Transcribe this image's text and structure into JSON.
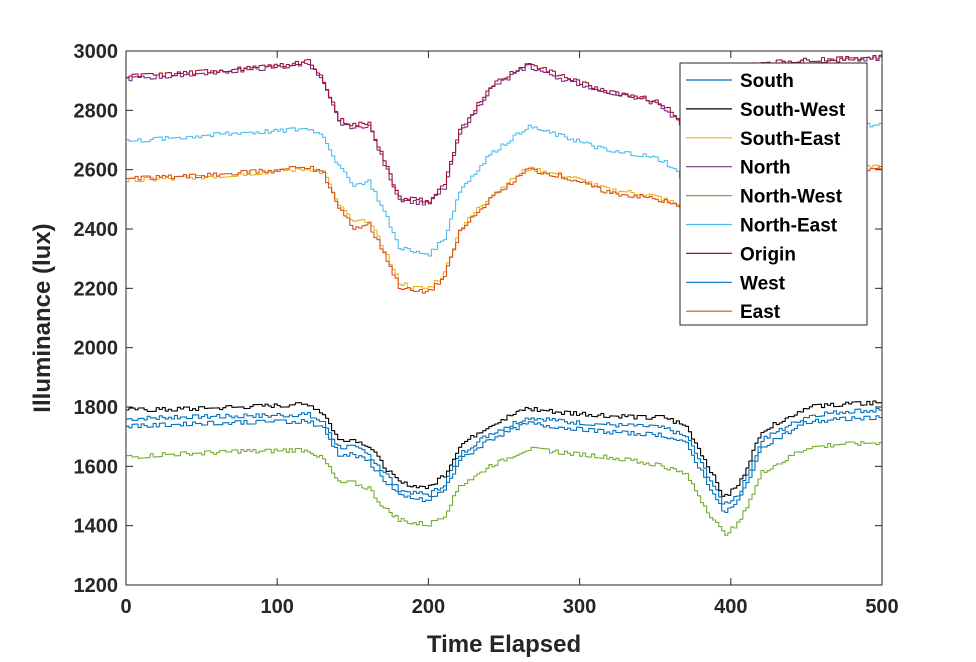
{
  "chart_data": {
    "type": "line",
    "title": "",
    "xlabel": "Time Elapsed",
    "ylabel": "Illuminance (lux)",
    "xlim": [
      0,
      500
    ],
    "ylim": [
      1200,
      3000
    ],
    "xticks": [
      0,
      100,
      200,
      300,
      400,
      500
    ],
    "yticks": [
      1200,
      1400,
      1600,
      1800,
      2000,
      2200,
      2400,
      2600,
      2800,
      3000
    ],
    "xtick_labels": [
      "0",
      "100",
      "200",
      "300",
      "400",
      "500"
    ],
    "ytick_labels": [
      "1200",
      "1400",
      "1600",
      "1800",
      "2000",
      "2200",
      "2400",
      "2600",
      "2800",
      "3000"
    ],
    "grid": false,
    "legend_position": "top-right",
    "x": [
      0,
      25,
      50,
      75,
      100,
      120,
      130,
      140,
      150,
      160,
      170,
      180,
      190,
      200,
      210,
      220,
      240,
      265,
      290,
      320,
      340,
      355,
      370,
      385,
      395,
      405,
      420,
      450,
      475,
      500
    ],
    "series": [
      {
        "name": "South",
        "color": "#0072BD",
        "values": [
          1760,
          1765,
          1768,
          1770,
          1772,
          1775,
          1745,
          1665,
          1665,
          1640,
          1580,
          1520,
          1510,
          1505,
          1540,
          1640,
          1710,
          1765,
          1750,
          1740,
          1735,
          1730,
          1700,
          1560,
          1470,
          1510,
          1690,
          1770,
          1785,
          1790
        ]
      },
      {
        "name": "South-West",
        "color": "#000000",
        "values": [
          1790,
          1792,
          1795,
          1800,
          1805,
          1810,
          1780,
          1690,
          1690,
          1670,
          1600,
          1545,
          1535,
          1530,
          1570,
          1670,
          1740,
          1795,
          1780,
          1770,
          1765,
          1765,
          1735,
          1595,
          1495,
          1540,
          1720,
          1800,
          1810,
          1815
        ]
      },
      {
        "name": "South-East",
        "color": "#EDB120",
        "values": [
          2565,
          2570,
          2575,
          2585,
          2595,
          2605,
          2590,
          2480,
          2420,
          2430,
          2330,
          2220,
          2200,
          2200,
          2250,
          2400,
          2510,
          2605,
          2580,
          2530,
          2520,
          2500,
          2470,
          2430,
          2420,
          2440,
          2530,
          2590,
          2605,
          2610
        ]
      },
      {
        "name": "North",
        "color": "#7E2F8E",
        "values": [
          2905,
          2915,
          2925,
          2935,
          2945,
          2960,
          2890,
          2760,
          2740,
          2750,
          2620,
          2500,
          2490,
          2485,
          2540,
          2720,
          2870,
          2950,
          2900,
          2860,
          2840,
          2810,
          2730,
          2800,
          2880,
          2940,
          2955,
          2965,
          2970,
          2975
        ]
      },
      {
        "name": "North-West",
        "color": "#77AC30",
        "values": [
          1630,
          1640,
          1645,
          1650,
          1652,
          1655,
          1625,
          1545,
          1545,
          1525,
          1460,
          1420,
          1410,
          1405,
          1435,
          1535,
          1600,
          1660,
          1645,
          1630,
          1615,
          1600,
          1570,
          1440,
          1370,
          1410,
          1580,
          1665,
          1675,
          1680
        ]
      },
      {
        "name": "North-East",
        "color": "#4DBEEE",
        "values": [
          2695,
          2705,
          2715,
          2725,
          2730,
          2740,
          2715,
          2610,
          2550,
          2560,
          2460,
          2340,
          2320,
          2315,
          2370,
          2530,
          2650,
          2745,
          2710,
          2660,
          2650,
          2630,
          2560,
          2620,
          2690,
          2730,
          2740,
          2745,
          2750,
          2750
        ]
      },
      {
        "name": "Origin",
        "color": "#A2142F",
        "values": [
          2915,
          2920,
          2930,
          2940,
          2950,
          2965,
          2900,
          2770,
          2750,
          2760,
          2630,
          2505,
          2500,
          2495,
          2550,
          2730,
          2880,
          2960,
          2910,
          2860,
          2845,
          2820,
          2740,
          2810,
          2890,
          2945,
          2960,
          2970,
          2975,
          2980
        ]
      },
      {
        "name": "West",
        "color": "#0072BD",
        "values": [
          1735,
          1740,
          1745,
          1748,
          1750,
          1752,
          1725,
          1640,
          1640,
          1615,
          1555,
          1500,
          1490,
          1485,
          1520,
          1620,
          1690,
          1745,
          1730,
          1715,
          1710,
          1705,
          1675,
          1535,
          1440,
          1485,
          1665,
          1750,
          1760,
          1765
        ]
      },
      {
        "name": "East",
        "color": "#D95319",
        "values": [
          2570,
          2575,
          2580,
          2590,
          2600,
          2610,
          2585,
          2470,
          2405,
          2415,
          2320,
          2205,
          2190,
          2190,
          2240,
          2390,
          2500,
          2600,
          2575,
          2520,
          2510,
          2495,
          2465,
          2425,
          2410,
          2435,
          2525,
          2585,
          2600,
          2605
        ]
      }
    ]
  }
}
